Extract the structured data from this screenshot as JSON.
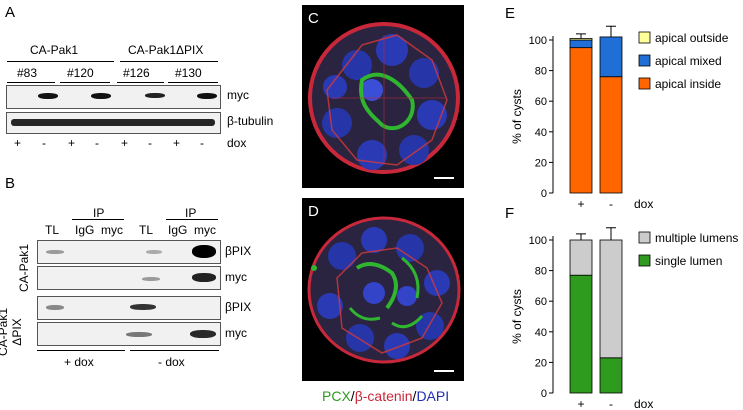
{
  "panels": {
    "A": "A",
    "B": "B",
    "C": "C",
    "D": "D",
    "E": "E",
    "F": "F"
  },
  "panel_a": {
    "group1": "CA-Pak1",
    "group2": "CA-Pak1ΔPIX",
    "clones": [
      "#83",
      "#120",
      "#126",
      "#130"
    ],
    "rows": [
      "myc",
      "β-tubulin"
    ],
    "dox_signs": [
      "+",
      "-",
      "+",
      "-",
      "+",
      "-",
      "+",
      "-"
    ],
    "dox_label": "dox"
  },
  "panel_b": {
    "ip1": "IP",
    "ip2": "IP",
    "lanes": [
      "TL",
      "IgG",
      "myc",
      "TL",
      "IgG",
      "myc"
    ],
    "row_labels": [
      "βPIX",
      "myc",
      "βPIX",
      "myc"
    ],
    "side1": "CA-Pak1",
    "side2": "CA-Pak1\nΔPIX",
    "bottom1": "+ dox",
    "bottom2": "- dox"
  },
  "caption": {
    "pcx": "PCX",
    "slash1": "/",
    "catenin": "β-catenin",
    "slash2": "/",
    "dapi": "DAPI"
  },
  "colors": {
    "orange": "#ff6600",
    "blue": "#1f6fd6",
    "yellow": "#ffff99",
    "green": "#2e9b1e",
    "gray": "#cccccc"
  },
  "chart_data": [
    {
      "type": "bar",
      "stacked": true,
      "categories": [
        "+",
        "-"
      ],
      "x_suffix": "dox",
      "ylabel": "% of cysts",
      "ylim": [
        0,
        100
      ],
      "yticks": [
        0,
        20,
        40,
        60,
        80,
        100
      ],
      "legend": [
        "apical outside",
        "apical mixed",
        "apical inside"
      ],
      "series": [
        {
          "name": "apical inside",
          "values": [
            95,
            76
          ],
          "error": [
            0,
            5
          ],
          "color": "#ff6600"
        },
        {
          "name": "apical mixed",
          "values": [
            5,
            26
          ],
          "error": [
            0,
            7
          ],
          "color": "#1f6fd6"
        },
        {
          "name": "apical outside",
          "values": [
            1,
            0
          ],
          "error": [
            3,
            0
          ],
          "color": "#ffff99"
        }
      ]
    },
    {
      "type": "bar",
      "stacked": true,
      "categories": [
        "+",
        "-"
      ],
      "x_suffix": "dox",
      "ylabel": "% of cysts",
      "ylim": [
        0,
        100
      ],
      "yticks": [
        0,
        20,
        40,
        60,
        80,
        100
      ],
      "legend": [
        "multiple lumens",
        "single lumen"
      ],
      "series": [
        {
          "name": "single lumen",
          "values": [
            77,
            23
          ],
          "error": [
            4,
            7
          ],
          "color": "#2e9b1e"
        },
        {
          "name": "multiple lumens",
          "values": [
            23,
            77
          ],
          "error": [
            4,
            8
          ],
          "color": "#cccccc"
        }
      ]
    }
  ]
}
